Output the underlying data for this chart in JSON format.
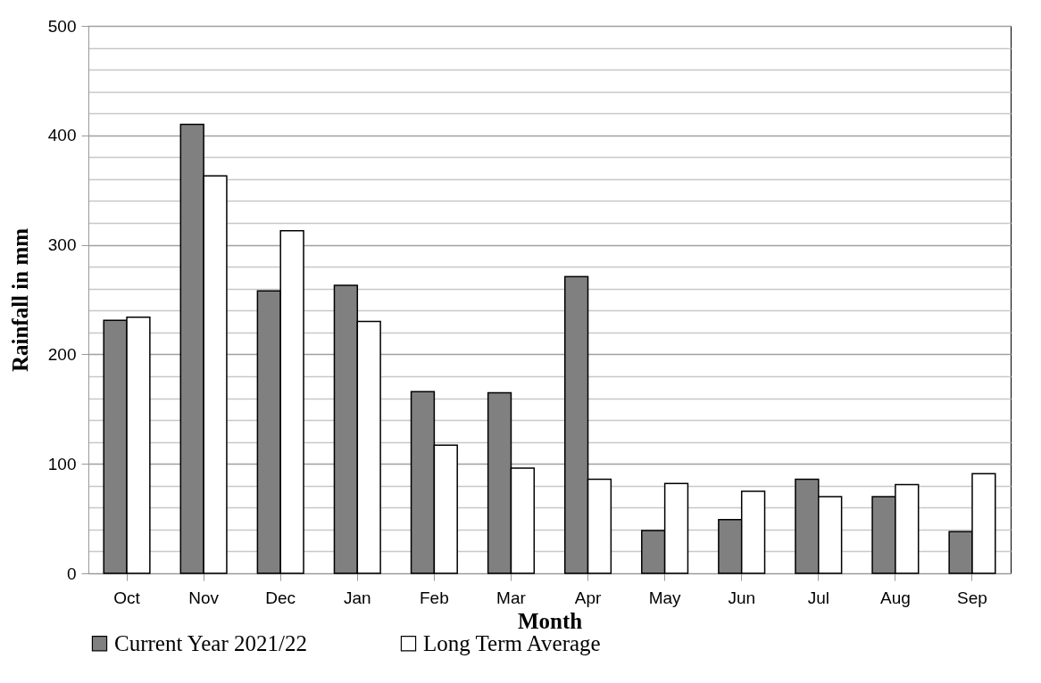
{
  "chart_data": {
    "type": "bar",
    "xlabel": "Month",
    "ylabel": "Rainfall in mm",
    "categories": [
      "Oct",
      "Nov",
      "Dec",
      "Jan",
      "Feb",
      "Mar",
      "Apr",
      "May",
      "Jun",
      "Jul",
      "Aug",
      "Sep"
    ],
    "series": [
      {
        "name": "Current Year 2021/22",
        "color": "#808080",
        "values": [
          231,
          410,
          258,
          263,
          166,
          165,
          271,
          39,
          49,
          86,
          70,
          38
        ]
      },
      {
        "name": "Long Term Average",
        "color": "#ffffff",
        "values": [
          234,
          363,
          313,
          230,
          117,
          96,
          86,
          82,
          75,
          70,
          81,
          91
        ]
      }
    ],
    "ylim": [
      0,
      500
    ],
    "yticks": [
      0,
      {
        "value": 20,
        "label": null
      },
      {
        "value": 40,
        "label": null
      },
      {
        "value": 60,
        "label": null
      },
      {
        "value": 80,
        "label": null
      },
      100,
      {
        "value": 120,
        "label": null
      },
      {
        "value": 140,
        "label": null
      },
      {
        "value": 160,
        "label": null
      },
      {
        "value": 180,
        "label": null
      },
      200,
      {
        "value": 220,
        "label": null
      },
      {
        "value": 240,
        "label": null
      },
      {
        "value": 260,
        "label": null
      },
      {
        "value": 280,
        "label": null
      },
      300,
      {
        "value": 320,
        "label": null
      },
      {
        "value": 340,
        "label": null
      },
      {
        "value": 360,
        "label": null
      },
      {
        "value": 380,
        "label": null
      },
      400,
      {
        "value": 420,
        "label": null
      },
      {
        "value": 440,
        "label": null
      },
      {
        "value": 460,
        "label": null
      },
      {
        "value": 480,
        "label": null
      },
      500
    ],
    "grid": "y",
    "legend": "bottom"
  }
}
